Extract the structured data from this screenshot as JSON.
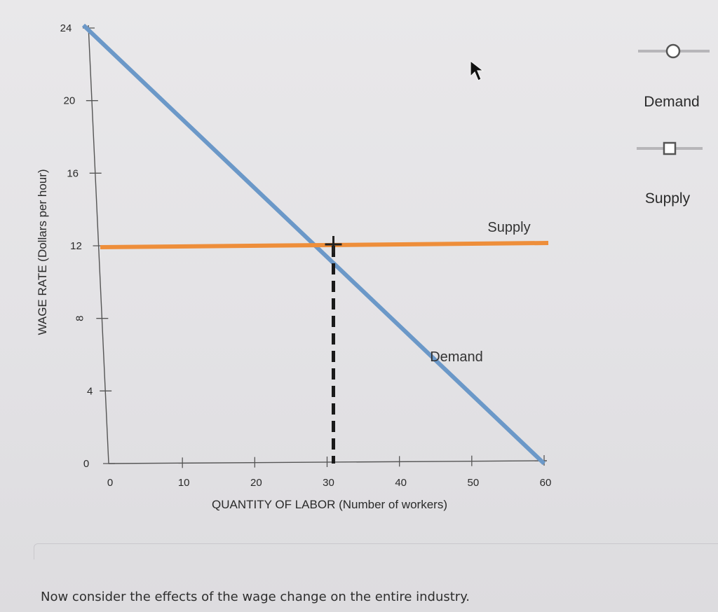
{
  "chart_data": {
    "type": "line",
    "xlabel": "QUANTITY OF LABOR (Number of workers)",
    "ylabel": "WAGE RATE (Dollars per hour)",
    "xlim": [
      0,
      60
    ],
    "ylim": [
      0,
      24
    ],
    "x_ticks": [
      0,
      10,
      20,
      30,
      40,
      50,
      60
    ],
    "y_ticks": [
      0,
      4,
      8,
      12,
      16,
      20,
      24
    ],
    "grid": false,
    "legend_placement": "right",
    "series": [
      {
        "name": "Demand",
        "color": "#6b98c8",
        "marker": "circle",
        "x": [
          0,
          60
        ],
        "y": [
          24,
          0
        ]
      },
      {
        "name": "Supply",
        "color": "#ee8e3a",
        "marker": "square",
        "x": [
          0,
          60
        ],
        "y": [
          12,
          12
        ]
      }
    ],
    "annotations": {
      "equilibrium": {
        "x": 30,
        "y": 12,
        "dropline": "dashed-vertical"
      },
      "curve_labels": [
        {
          "text": "Supply",
          "series": "Supply"
        },
        {
          "text": "Demand",
          "series": "Demand"
        }
      ]
    }
  },
  "legend": {
    "demand_label": "Demand",
    "supply_label": "Supply"
  },
  "footer": {
    "text": "Now consider the effects of the wage change on the entire industry."
  },
  "colors": {
    "demand": "#6b98c8",
    "supply": "#ee8e3a",
    "axis": "#555555",
    "dropline": "#1a1a1a"
  },
  "cursor": "arrow-cursor-icon"
}
